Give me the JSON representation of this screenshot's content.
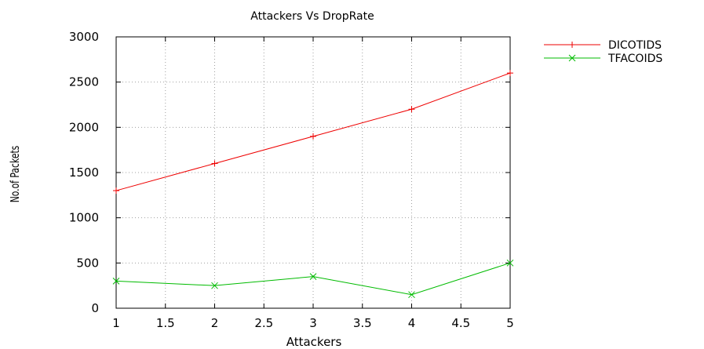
{
  "chart_data": {
    "type": "line",
    "title": "Attackers Vs DropRate",
    "xlabel": "Attackers",
    "ylabel": "No.of Packets",
    "xlim": [
      1,
      5
    ],
    "ylim": [
      0,
      3000
    ],
    "x_ticks": [
      1,
      1.5,
      2,
      2.5,
      3,
      3.5,
      4,
      4.5,
      5
    ],
    "y_ticks": [
      0,
      500,
      1000,
      1500,
      2000,
      2500,
      3000
    ],
    "x_tick_labels": [
      "1",
      "1.5",
      "2",
      "2.5",
      "3",
      "3.5",
      "4",
      "4.5",
      "5"
    ],
    "y_tick_labels": [
      "0",
      "500",
      "1000",
      "1500",
      "2000",
      "2500",
      "3000"
    ],
    "grid": true,
    "legend_position": "top-right outside",
    "series": [
      {
        "name": "DICOTIDS",
        "color": "#ee0000",
        "marker": "plus",
        "x": [
          1,
          2,
          3,
          4,
          5
        ],
        "y": [
          1300,
          1600,
          1900,
          2200,
          2600
        ]
      },
      {
        "name": "TFACOIDS",
        "color": "#00bb00",
        "marker": "cross",
        "x": [
          1,
          2,
          3,
          4,
          5
        ],
        "y": [
          300,
          250,
          350,
          150,
          500
        ]
      }
    ]
  }
}
